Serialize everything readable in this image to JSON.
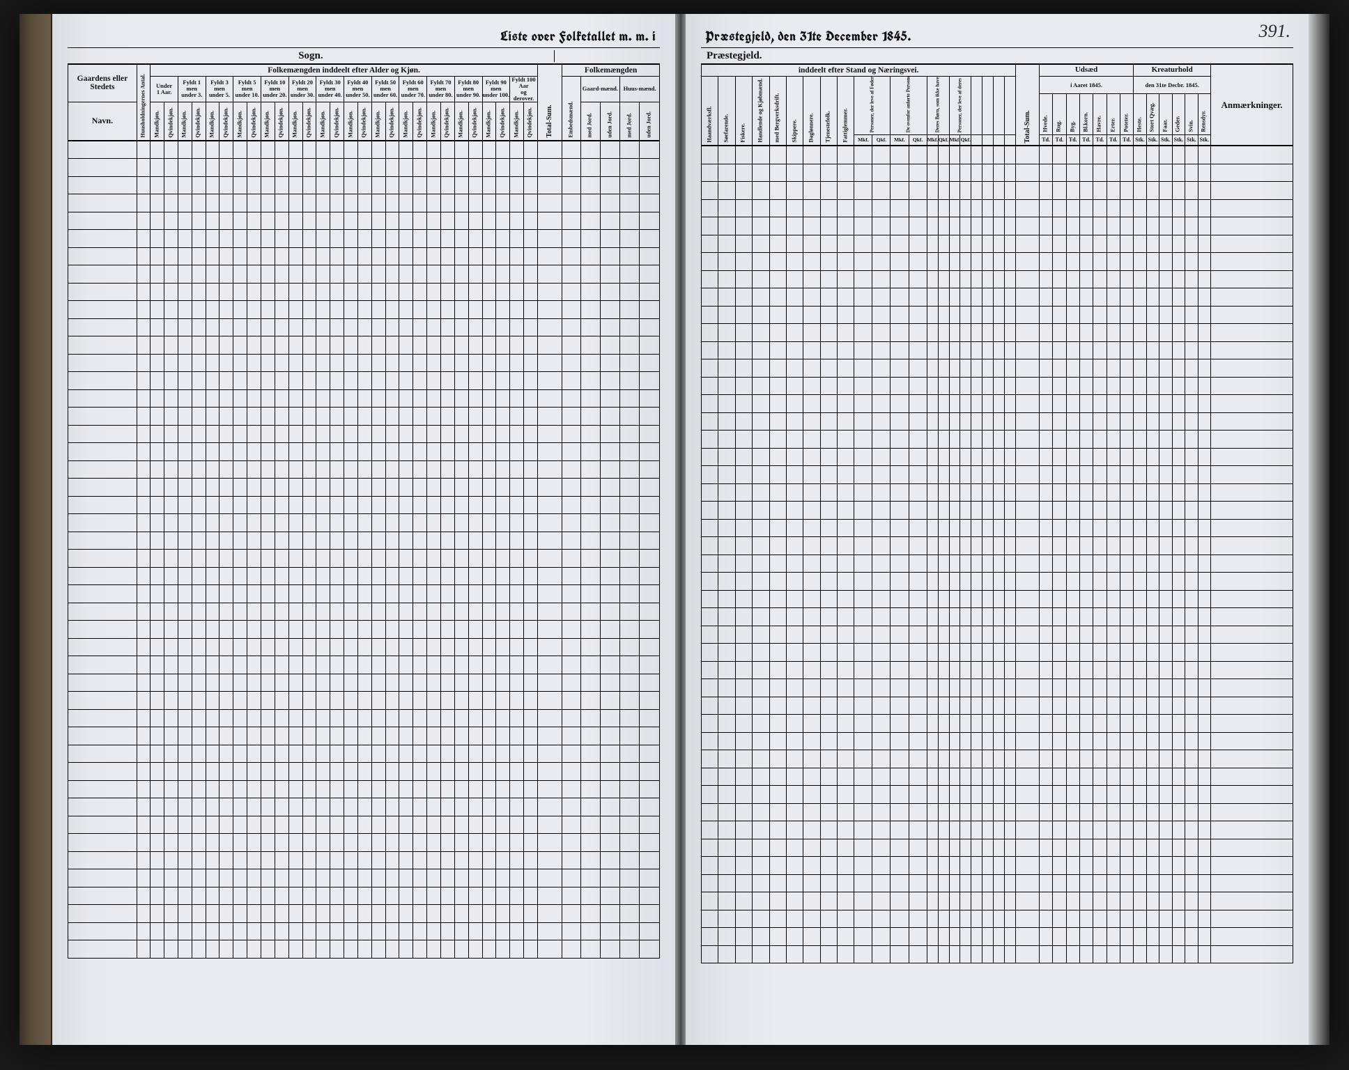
{
  "page_number": "391.",
  "title_left": "Liste over Folketallet m. m. i",
  "title_right": "Præstegjeld, den 31te December 1845.",
  "sub_left_a": "Sogn.",
  "sub_right_a": "Præstegjeld.",
  "page_bg": "#e8ecf0",
  "ink": "#111111",
  "body_rows": 46,
  "left": {
    "gaard_head": "Gaardens eller Stedets",
    "navn": "Navn.",
    "hh": "Huusholdningernes Antal.",
    "age_section": "Folkemængden inddeelt efter Alder og Kjøn.",
    "age_groups": [
      {
        "top": "Under",
        "bot": "1 Aar."
      },
      {
        "top": "Fyldt 1",
        "bot": "men under 3."
      },
      {
        "top": "Fyldt 3",
        "bot": "men under 5."
      },
      {
        "top": "Fyldt 5",
        "bot": "men under 10."
      },
      {
        "top": "Fyldt 10",
        "bot": "men under 20."
      },
      {
        "top": "Fyldt 20",
        "bot": "men under 30."
      },
      {
        "top": "Fyldt 30",
        "bot": "men under 40."
      },
      {
        "top": "Fyldt 40",
        "bot": "men under 50."
      },
      {
        "top": "Fyldt 50",
        "bot": "men under 60."
      },
      {
        "top": "Fyldt 60",
        "bot": "men under 70."
      },
      {
        "top": "Fyldt 70",
        "bot": "men under 80."
      },
      {
        "top": "Fyldt 80",
        "bot": "men under 90."
      },
      {
        "top": "Fyldt 90",
        "bot": "men under 100."
      },
      {
        "top": "Fyldt 100 Aar",
        "bot": "og derover."
      }
    ],
    "mk": "Mandkjøn.",
    "qk": "Qvindekjøn.",
    "total": "Total-Sum.",
    "folkem_right": "Folkemængden",
    "embeds": "Embedsmænd.",
    "gaard": "Gaard-mænd.",
    "huus": "Huus-mænd.",
    "med_jord": "med Jord.",
    "uden_jord": "uden Jord."
  },
  "right": {
    "stand_section": "inddeelt efter Stand og Næringsvei.",
    "cols": [
      "Haandværksfl.",
      "Søefarende.",
      "Fiskere.",
      "Handlende og Kjøbmænd.",
      "med Bergverksdrift.",
      "Skippere.",
      "Daglønnere.",
      "Tjenestefolk.",
      "Fattiglemmer."
    ],
    "sub4": [
      "Personer, der leve af Føderaad eller have sit Ophold hos Andre.",
      "De ovenfor anførte Personers Koner.",
      "Deres Børn, som ikke have eget Erhverv.",
      "Personer, der leve af deres Midler."
    ],
    "mkf": "Mkf.",
    "qkf": "Qkf.",
    "total2": "Total-Sum.",
    "udsaed": "Udsæd",
    "aaret": "i Aaret 1845.",
    "kreatur": "Kreaturhold",
    "dato": "den 31te Decbr. 1845.",
    "anm": "Anmærkninger.",
    "ud_cols": [
      "Hvede.",
      "Rug.",
      "Byg.",
      "Bl.korn.",
      "Havre.",
      "Erter.",
      "Poteter."
    ],
    "unit_td": "Td.",
    "kr_cols": [
      "Heste.",
      "Stort Qvæg.",
      "Faar.",
      "Geder.",
      "Svin.",
      "Rensdyr."
    ],
    "unit_stk": "Stk."
  }
}
